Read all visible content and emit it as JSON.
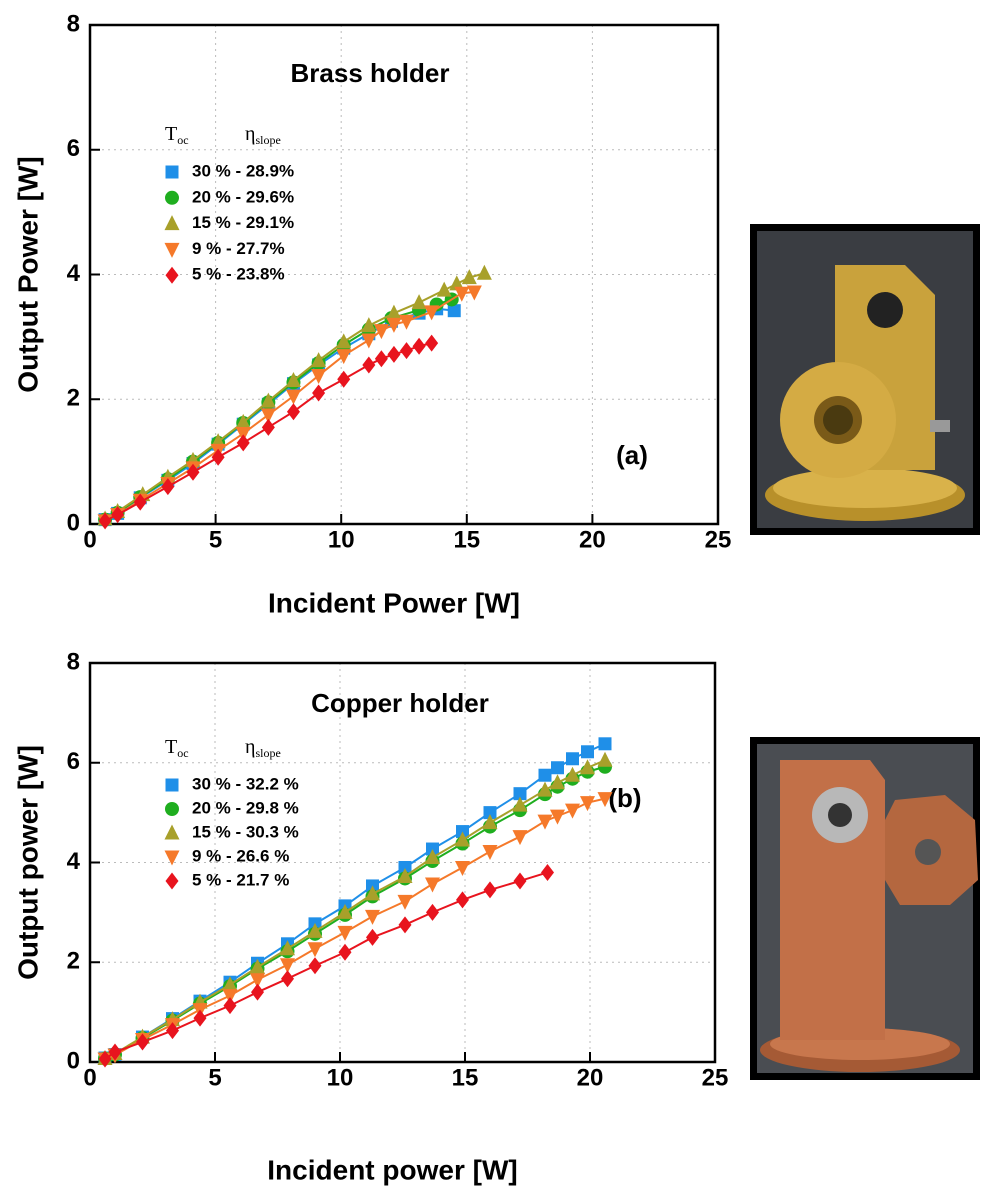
{
  "chart_data": [
    {
      "type": "scatter",
      "title": "Brass holder",
      "annotation": "(a)",
      "x_label": "Incident Power [W]",
      "y_label": "Output Power [W]",
      "legend_header": {
        "t_main": "T",
        "t_sub": "oc",
        "eta_main": "η",
        "eta_sub": "slope"
      },
      "legend_position": "upper left",
      "xlim": [
        0,
        25
      ],
      "xticks": [
        0,
        5,
        10,
        15,
        20,
        25
      ],
      "ylim": [
        0,
        8
      ],
      "yticks": [
        0,
        2,
        4,
        6,
        8
      ],
      "grid": true,
      "series": [
        {
          "name": "30 % - 28.9%",
          "color": "#1f8fe8",
          "marker": "square",
          "x": [
            0.6,
            1.1,
            2,
            3.1,
            4.1,
            5.1,
            6.1,
            7.1,
            8.1,
            9.1,
            10.1,
            11.1,
            12,
            13.1,
            13.8,
            14.5
          ],
          "values": [
            0.07,
            0.17,
            0.42,
            0.7,
            0.97,
            1.28,
            1.6,
            1.92,
            2.25,
            2.55,
            2.82,
            3.05,
            3.25,
            3.38,
            3.45,
            3.42
          ]
        },
        {
          "name": "20 % - 29.6%",
          "color": "#1fae1f",
          "marker": "circle",
          "x": [
            0.6,
            1.1,
            2,
            3.1,
            4.1,
            5.1,
            6.1,
            7.1,
            8.1,
            9.1,
            10.1,
            11.1,
            12,
            13.1,
            13.8,
            14.4
          ],
          "values": [
            0.07,
            0.18,
            0.43,
            0.72,
            1.0,
            1.3,
            1.62,
            1.95,
            2.27,
            2.58,
            2.87,
            3.12,
            3.3,
            3.43,
            3.52,
            3.6
          ]
        },
        {
          "name": "15 % - 29.1%",
          "color": "#a8a02a",
          "marker": "triangle-up",
          "x": [
            0.6,
            1.1,
            2.1,
            3.1,
            4.1,
            5.1,
            6.1,
            7.1,
            8.1,
            9.1,
            10.1,
            11.1,
            12.1,
            13.1,
            14.1,
            14.6,
            15.1,
            15.7
          ],
          "values": [
            0.08,
            0.2,
            0.47,
            0.75,
            1.02,
            1.32,
            1.63,
            1.97,
            2.3,
            2.62,
            2.92,
            3.18,
            3.38,
            3.55,
            3.75,
            3.85,
            3.95,
            4.02
          ]
        },
        {
          "name": "9 % - 27.7%",
          "color": "#f5792a",
          "marker": "triangle-down",
          "x": [
            0.6,
            1.1,
            2,
            3.1,
            4.1,
            5.1,
            6.1,
            7.1,
            8.1,
            9.1,
            10.1,
            11.1,
            11.6,
            12.1,
            12.6,
            13.6,
            14.8,
            15.3
          ],
          "values": [
            0.05,
            0.15,
            0.38,
            0.65,
            0.9,
            1.18,
            1.45,
            1.75,
            2.05,
            2.38,
            2.7,
            2.95,
            3.1,
            3.2,
            3.25,
            3.4,
            3.7,
            3.72
          ]
        },
        {
          "name": "5 % - 23.8%",
          "color": "#e8141e",
          "marker": "diamond",
          "x": [
            0.6,
            1.1,
            2,
            3.1,
            4.1,
            5.1,
            6.1,
            7.1,
            8.1,
            9.1,
            10.1,
            11.1,
            11.6,
            12.1,
            12.6,
            13.1,
            13.6
          ],
          "values": [
            0.05,
            0.15,
            0.35,
            0.6,
            0.83,
            1.07,
            1.3,
            1.55,
            1.8,
            2.1,
            2.32,
            2.55,
            2.65,
            2.72,
            2.78,
            2.85,
            2.9
          ]
        }
      ]
    },
    {
      "type": "scatter",
      "title": "Copper holder",
      "annotation": "(b)",
      "x_label": "Incident power [W]",
      "y_label": "Output power [W]",
      "legend_header": {
        "t_main": "T",
        "t_sub": "oc",
        "eta_main": "η",
        "eta_sub": "slope"
      },
      "legend_position": "upper left",
      "xlim": [
        0,
        25
      ],
      "xticks": [
        0,
        5,
        10,
        15,
        20,
        25
      ],
      "ylim": [
        0,
        8
      ],
      "yticks": [
        0,
        2,
        4,
        6,
        8
      ],
      "grid": true,
      "series": [
        {
          "name": "30 % - 32.2 %",
          "color": "#1f8fe8",
          "marker": "square",
          "x": [
            0.6,
            1,
            2.1,
            3.3,
            4.4,
            5.6,
            6.7,
            7.9,
            9,
            10.2,
            11.3,
            12.6,
            13.7,
            14.9,
            16,
            17.2,
            18.2,
            18.7,
            19.3,
            19.9,
            20.6
          ],
          "values": [
            0.08,
            0.15,
            0.5,
            0.87,
            1.22,
            1.6,
            1.98,
            2.37,
            2.77,
            3.13,
            3.53,
            3.9,
            4.27,
            4.62,
            5.0,
            5.38,
            5.75,
            5.9,
            6.08,
            6.22,
            6.38
          ]
        },
        {
          "name": "20 % - 29.8 %",
          "color": "#1fae1f",
          "marker": "circle",
          "x": [
            0.6,
            1,
            2.1,
            3.3,
            4.4,
            5.6,
            6.7,
            7.9,
            9,
            10.2,
            11.3,
            12.6,
            13.7,
            14.9,
            16,
            17.2,
            18.2,
            18.7,
            19.3,
            19.9,
            20.6
          ],
          "values": [
            0.07,
            0.15,
            0.48,
            0.83,
            1.17,
            1.52,
            1.87,
            2.22,
            2.57,
            2.95,
            3.32,
            3.68,
            4.03,
            4.38,
            4.72,
            5.05,
            5.37,
            5.52,
            5.68,
            5.82,
            5.92
          ]
        },
        {
          "name": "15 % - 30.3 %",
          "color": "#a8a02a",
          "marker": "triangle-up",
          "x": [
            0.6,
            1,
            2.1,
            3.3,
            4.4,
            5.6,
            6.7,
            7.9,
            9,
            10.2,
            11.3,
            12.6,
            13.7,
            14.9,
            16,
            17.2,
            18.2,
            18.7,
            19.3,
            19.9,
            20.6
          ],
          "values": [
            0.07,
            0.17,
            0.5,
            0.85,
            1.2,
            1.55,
            1.9,
            2.27,
            2.62,
            3.0,
            3.37,
            3.72,
            4.1,
            4.45,
            4.8,
            5.15,
            5.45,
            5.6,
            5.75,
            5.9,
            6.05
          ]
        },
        {
          "name": "9 % - 26.6 %",
          "color": "#f5792a",
          "marker": "triangle-down",
          "x": [
            0.6,
            1,
            2.1,
            3.3,
            4.4,
            5.6,
            6.7,
            7.9,
            9,
            10.2,
            11.3,
            12.6,
            13.7,
            14.9,
            16,
            17.2,
            18.2,
            18.7,
            19.3,
            19.9,
            20.6
          ],
          "values": [
            0.06,
            0.14,
            0.45,
            0.75,
            1.05,
            1.33,
            1.65,
            1.95,
            2.27,
            2.6,
            2.92,
            3.22,
            3.57,
            3.9,
            4.22,
            4.52,
            4.83,
            4.93,
            5.05,
            5.2,
            5.28
          ]
        },
        {
          "name": "5 % - 21.7 %",
          "color": "#e8141e",
          "marker": "diamond",
          "x": [
            0.6,
            1,
            2.1,
            3.3,
            4.4,
            5.6,
            6.7,
            7.9,
            9,
            10.2,
            11.3,
            12.6,
            13.7,
            14.9,
            16,
            17.2,
            18.3
          ],
          "values": [
            0.06,
            0.2,
            0.4,
            0.63,
            0.88,
            1.13,
            1.4,
            1.67,
            1.93,
            2.2,
            2.5,
            2.75,
            3.0,
            3.25,
            3.45,
            3.63,
            3.8
          ]
        }
      ]
    }
  ]
}
